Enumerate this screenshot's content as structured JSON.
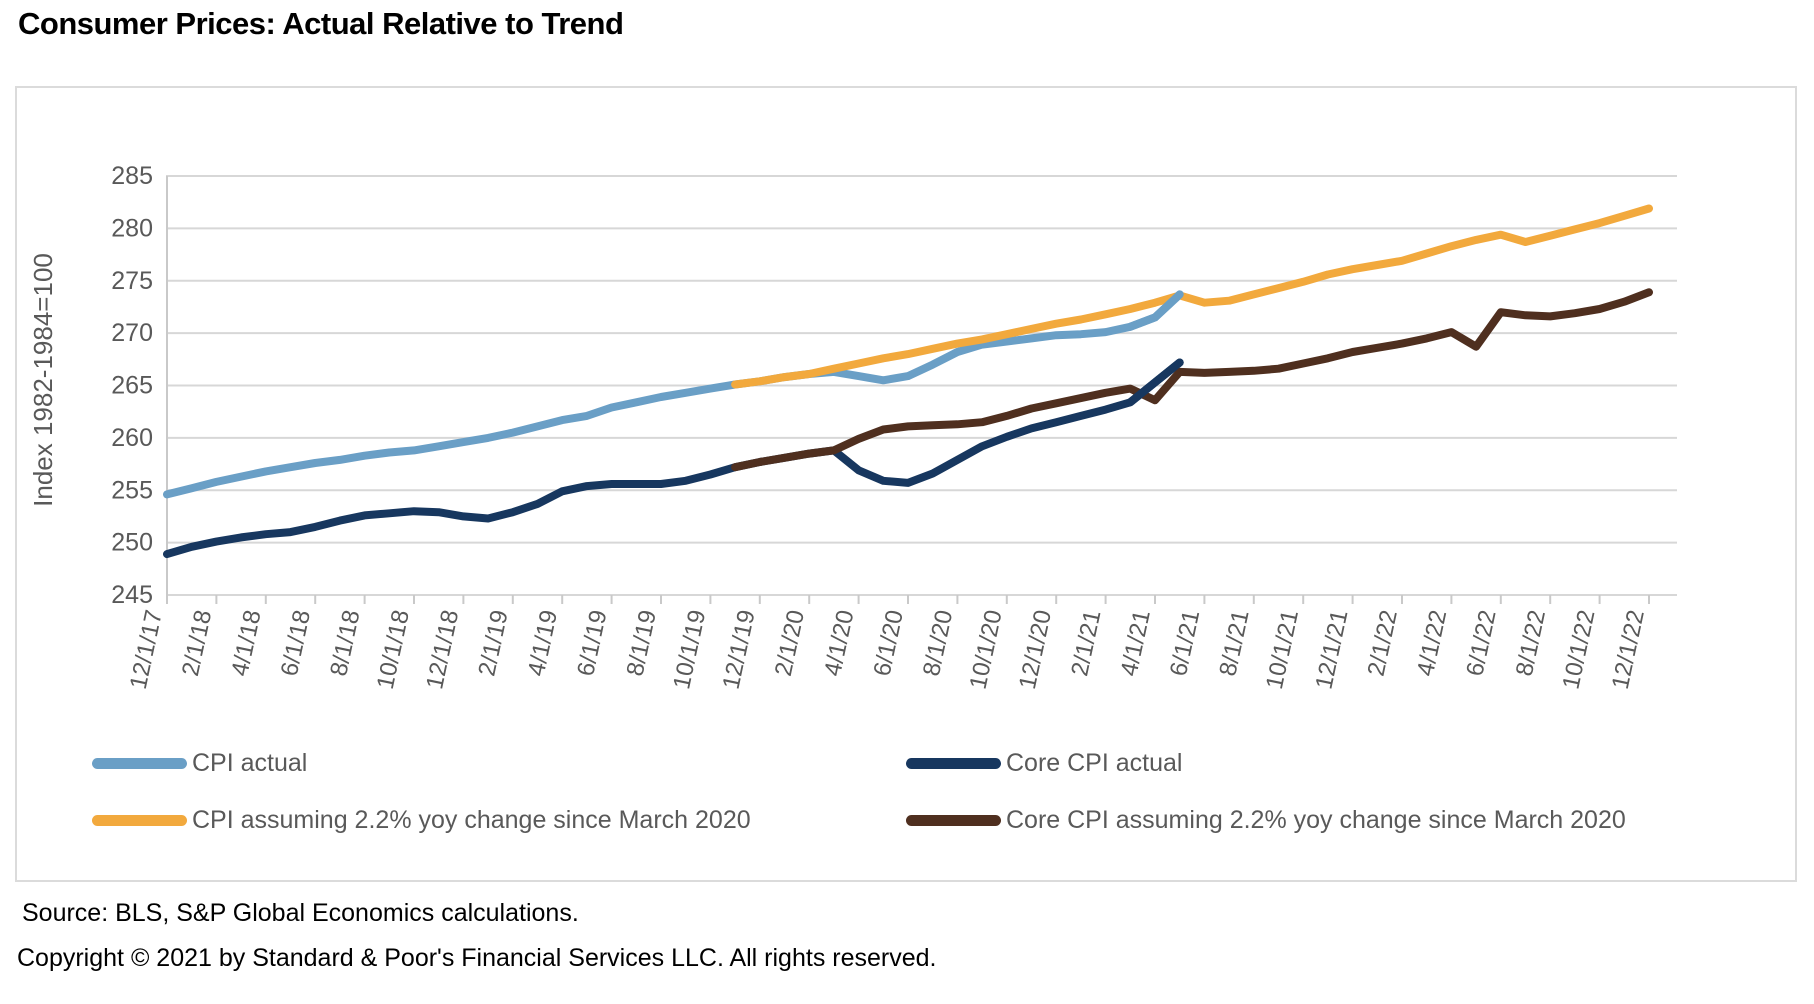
{
  "title": "Consumer Prices: Actual Relative to Trend",
  "chart_data": {
    "type": "line",
    "title": "Consumer Prices: Actual Relative to Trend",
    "xlabel": "",
    "ylabel": "Index 1982-1984=100",
    "ylim": [
      245,
      285
    ],
    "ytick_step": 5,
    "yticks": [
      245,
      250,
      255,
      260,
      265,
      270,
      275,
      280,
      285
    ],
    "grid": true,
    "legend_position": "bottom",
    "x_unit": "months from Dec 2017, monthly data",
    "x_tick_labels": [
      "12/1/17",
      "2/1/18",
      "4/1/18",
      "6/1/18",
      "8/1/18",
      "10/1/18",
      "12/1/18",
      "2/1/19",
      "4/1/19",
      "6/1/19",
      "8/1/19",
      "10/1/19",
      "12/1/19",
      "2/1/20",
      "4/1/20",
      "6/1/20",
      "8/1/20",
      "10/1/20",
      "12/1/20",
      "2/1/21",
      "4/1/21",
      "6/1/21",
      "8/1/21",
      "10/1/21",
      "12/1/21",
      "2/1/22",
      "4/1/22",
      "6/1/22",
      "8/1/22",
      "10/1/22",
      "12/1/22"
    ],
    "x_tick_months": [
      0,
      2,
      4,
      6,
      8,
      10,
      12,
      14,
      16,
      18,
      20,
      22,
      24,
      26,
      28,
      30,
      32,
      34,
      36,
      38,
      40,
      42,
      44,
      46,
      48,
      50,
      52,
      54,
      56,
      58,
      60
    ],
    "months_domain": [
      0,
      60
    ],
    "series": [
      {
        "name": "CPI actual",
        "color": "#6A9FC6",
        "start_month": 0,
        "values": [
          254.6,
          255.2,
          255.8,
          256.3,
          256.8,
          257.2,
          257.6,
          257.9,
          258.3,
          258.6,
          258.8,
          259.2,
          259.6,
          260.0,
          260.5,
          261.1,
          261.7,
          262.1,
          262.9,
          263.4,
          263.9,
          264.3,
          264.7,
          265.1,
          265.4,
          265.8,
          266.1,
          266.3,
          265.9,
          265.5,
          265.9,
          267.0,
          268.2,
          268.9,
          269.2,
          269.5,
          269.8,
          269.9,
          270.1,
          270.6,
          271.5,
          273.7
        ]
      },
      {
        "name": "Core CPI actual",
        "color": "#17375F",
        "start_month": 0,
        "values": [
          248.9,
          249.6,
          250.1,
          250.5,
          250.8,
          251.0,
          251.5,
          252.1,
          252.6,
          252.8,
          253.0,
          252.9,
          252.5,
          252.3,
          252.9,
          253.7,
          254.9,
          255.4,
          255.6,
          255.6,
          255.6,
          255.9,
          256.5,
          257.2,
          257.7,
          258.1,
          258.5,
          258.8,
          256.9,
          255.9,
          255.7,
          256.6,
          257.9,
          259.2,
          260.1,
          260.9,
          261.5,
          262.1,
          262.7,
          263.4,
          265.3,
          267.2
        ]
      },
      {
        "name": "CPI assuming 2.2% yoy change since March 2020",
        "color": "#F2A93D",
        "start_month": 23,
        "values": [
          265.1,
          265.4,
          265.8,
          266.1,
          266.6,
          267.1,
          267.6,
          268.0,
          268.5,
          269.0,
          269.4,
          269.9,
          270.4,
          270.9,
          271.3,
          271.8,
          272.3,
          272.9,
          273.6,
          272.9,
          273.1,
          273.7,
          274.3,
          274.9,
          275.6,
          276.1,
          276.5,
          276.9,
          277.6,
          278.3,
          278.9,
          279.4,
          278.7,
          279.3,
          279.9,
          280.5,
          281.2,
          281.9
        ]
      },
      {
        "name": "Core CPI assuming 2.2% yoy change since March 2020",
        "color": "#4F2F1F",
        "start_month": 23,
        "values": [
          257.2,
          257.7,
          258.1,
          258.5,
          258.8,
          259.9,
          260.8,
          261.1,
          261.2,
          261.3,
          261.5,
          262.1,
          262.8,
          263.3,
          263.8,
          264.3,
          264.7,
          263.6,
          266.3,
          266.2,
          266.3,
          266.4,
          266.6,
          267.1,
          267.6,
          268.2,
          268.6,
          269.0,
          269.5,
          270.1,
          268.7,
          272.0,
          271.7,
          271.6,
          271.9,
          272.3,
          273.0,
          273.9
        ]
      }
    ],
    "axis_text_color": "#595959",
    "gridline_color": "#d7d7d7",
    "axis_line_color": "#c9c9c9"
  },
  "legend": {
    "items": [
      {
        "label": "CPI actual",
        "color": "#6A9FC6"
      },
      {
        "label": "Core CPI actual",
        "color": "#17375F"
      },
      {
        "label": "CPI assuming 2.2% yoy change since March 2020",
        "color": "#F2A93D"
      },
      {
        "label": "Core CPI assuming 2.2% yoy change since March 2020",
        "color": "#4F2F1F"
      }
    ]
  },
  "footer": {
    "source": "Source: BLS, S&P Global Economics calculations.",
    "copyright": "Copyright © 2021 by Standard & Poor's Financial Services LLC. All rights reserved."
  }
}
